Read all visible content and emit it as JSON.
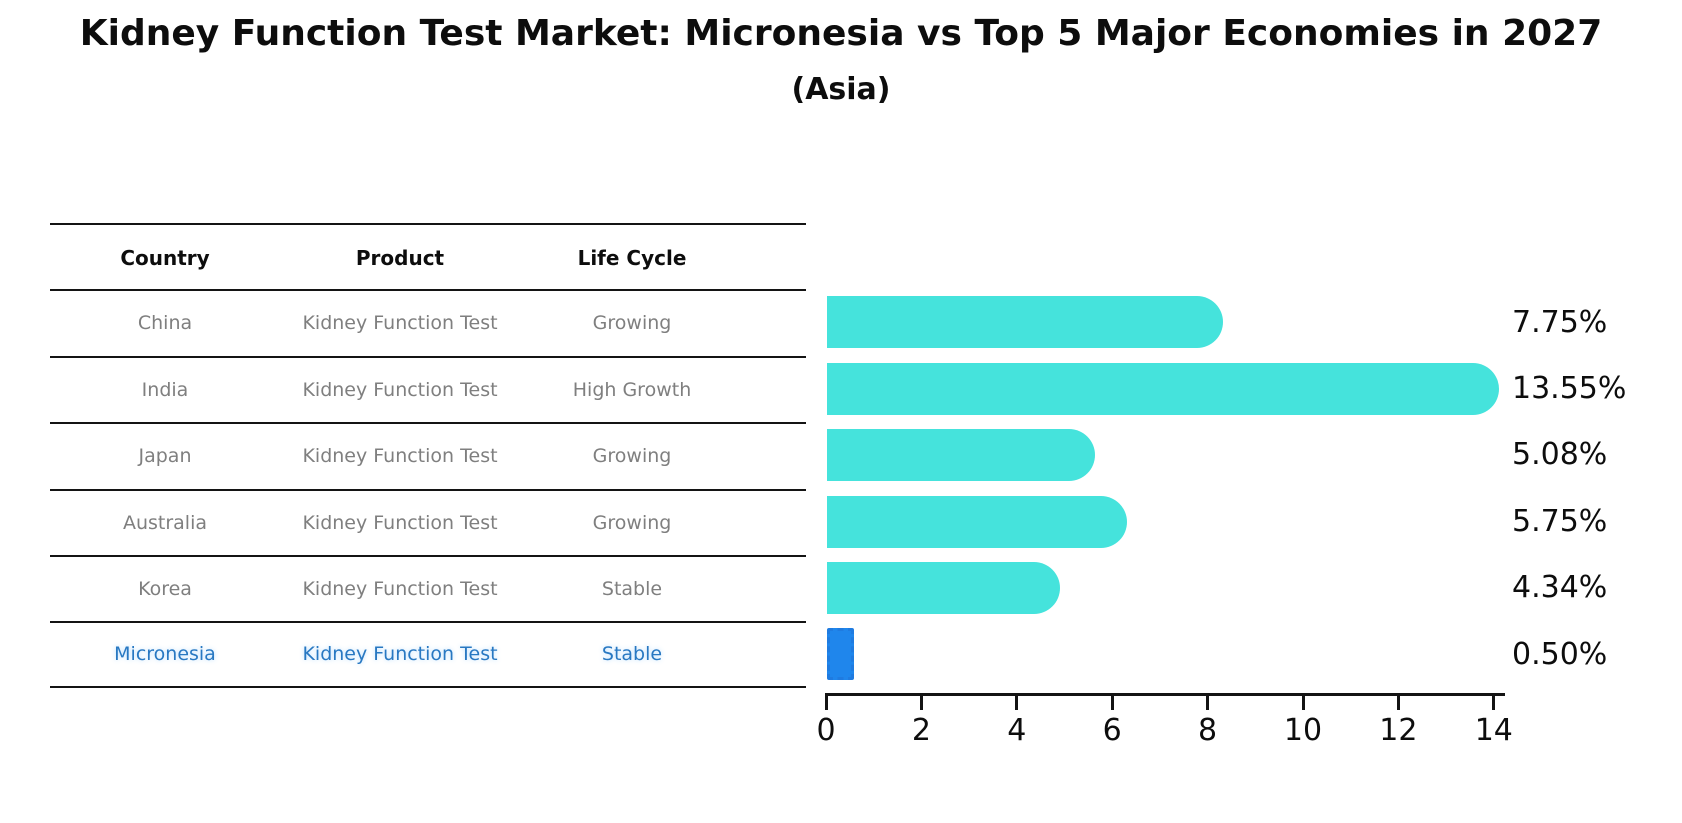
{
  "title": "Kidney Function Test Market: Micronesia vs Top 5 Major Economies in 2027",
  "subtitle": "(Asia)",
  "table": {
    "headers": [
      "Country",
      "Product",
      "Life Cycle"
    ],
    "rows": [
      {
        "country": "China",
        "product": "Kidney Function Test",
        "life_cycle": "Growing",
        "highlight": false
      },
      {
        "country": "India",
        "product": "Kidney Function Test",
        "life_cycle": "High Growth",
        "highlight": false
      },
      {
        "country": "Japan",
        "product": "Kidney Function Test",
        "life_cycle": "Growing",
        "highlight": false
      },
      {
        "country": "Australia",
        "product": "Kidney Function Test",
        "life_cycle": "Growing",
        "highlight": false
      },
      {
        "country": "Korea",
        "product": "Kidney Function Test",
        "life_cycle": "Stable",
        "highlight": false
      },
      {
        "country": "Micronesia",
        "product": "Kidney Function Test",
        "life_cycle": "Stable",
        "highlight": true
      }
    ]
  },
  "chart_data": {
    "type": "bar",
    "orientation": "horizontal",
    "title": "Kidney Function Test Market: Micronesia vs Top 5 Major Economies in 2027",
    "subtitle": "(Asia)",
    "categories": [
      "China",
      "India",
      "Japan",
      "Australia",
      "Korea",
      "Micronesia"
    ],
    "values": [
      7.75,
      13.55,
      5.08,
      5.75,
      4.34,
      0.5
    ],
    "value_labels": [
      "7.75%",
      "13.55%",
      "5.08%",
      "5.75%",
      "4.34%",
      "0.50%"
    ],
    "xlim": [
      0,
      14
    ],
    "x_ticks": [
      "0",
      "2",
      "4",
      "6",
      "8",
      "10",
      "12",
      "14"
    ],
    "grid": false,
    "legend": false,
    "bar_color": "#45E3DC",
    "highlight_index": 5,
    "highlight_bar_color": "#1F86EC",
    "highlight_bar_edge_color": "#1F7BE0",
    "highlight_text_color": "#2878C2"
  },
  "colors": {
    "bar_cyan": "#45E3DC",
    "bar_blue": "#1F86EC",
    "bar_blue_edge": "#1F7BE0",
    "highlight_text": "#2878C2",
    "cell_text": "#7F7F7F",
    "header_text": "#0D0D0D",
    "line": "#141414",
    "background": "#FFFFFF"
  }
}
